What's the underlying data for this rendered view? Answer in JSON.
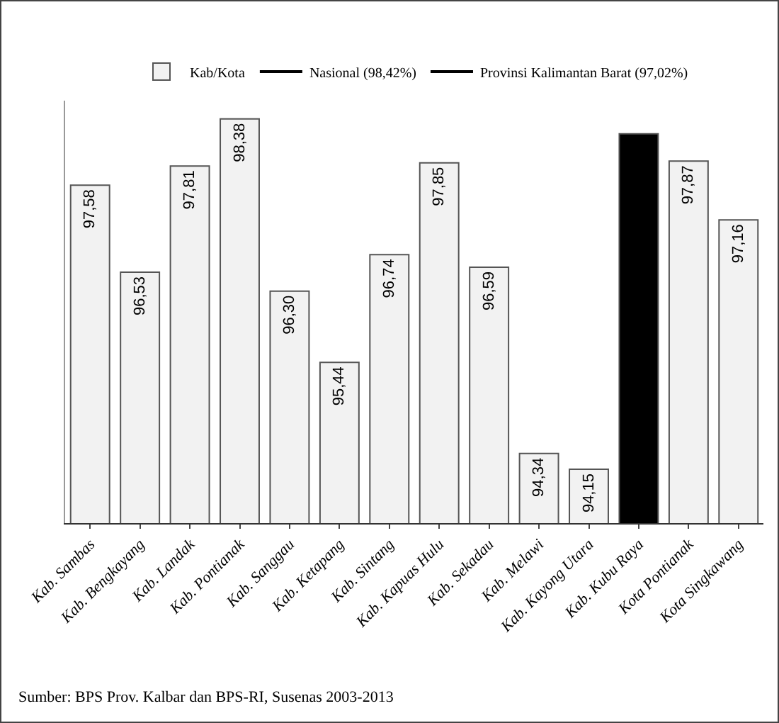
{
  "chart_data": {
    "type": "bar",
    "categories": [
      "Kab. Sambas",
      "Kab. Bengkayang",
      "Kab. Landak",
      "Kab. Pontianak",
      "Kab. Sanggau",
      "Kab. Ketapang",
      "Kab. Sintang",
      "Kab. Kapuas Hulu",
      "Kab. Sekadau",
      "Kab. Melawi",
      "Kab. Kayong Utara",
      "Kab. Kubu Raya",
      "Kota Pontianak",
      "Kota Singkawang"
    ],
    "series": [
      {
        "name": "Kab/Kota",
        "color": "#f2f2f2",
        "colors": [
          "#f2f2f2",
          "#f2f2f2",
          "#f2f2f2",
          "#f2f2f2",
          "#f2f2f2",
          "#f2f2f2",
          "#f2f2f2",
          "#f2f2f2",
          "#f2f2f2",
          "#f2f2f2",
          "#f2f2f2",
          "#000000",
          "#f2f2f2",
          "#f2f2f2"
        ],
        "values": [
          97.58,
          96.53,
          97.81,
          98.38,
          96.3,
          95.44,
          96.74,
          97.85,
          96.59,
          94.34,
          94.15,
          98.2,
          97.87,
          97.16
        ],
        "value_labels": [
          "97,58",
          "96,53",
          "97,81",
          "98,38",
          "96,30",
          "95,44",
          "96,74",
          "97,85",
          "96,59",
          "94,34",
          "94,15",
          null,
          "97,87",
          "97,16"
        ]
      },
      {
        "name": "Nasional (98,42%)",
        "type": "line",
        "color": "#000000",
        "values": [
          null,
          null,
          null,
          null,
          null,
          null,
          null,
          null,
          null,
          null,
          null,
          null,
          null,
          null
        ]
      },
      {
        "name": "Provinsi Kalimantan Barat (97,02%)",
        "type": "line",
        "color": "#000000",
        "values": [
          null,
          null,
          null,
          null,
          null,
          null,
          null,
          null,
          null,
          null,
          null,
          null,
          null,
          null
        ]
      }
    ],
    "ylim": [
      93.5,
      98.6
    ],
    "tick_labels": "x",
    "grid": false,
    "legend": "top",
    "annotations": [
      "Sumber: BPS Prov. Kalbar dan BPS-RI, Susenas 2003-2013"
    ]
  }
}
